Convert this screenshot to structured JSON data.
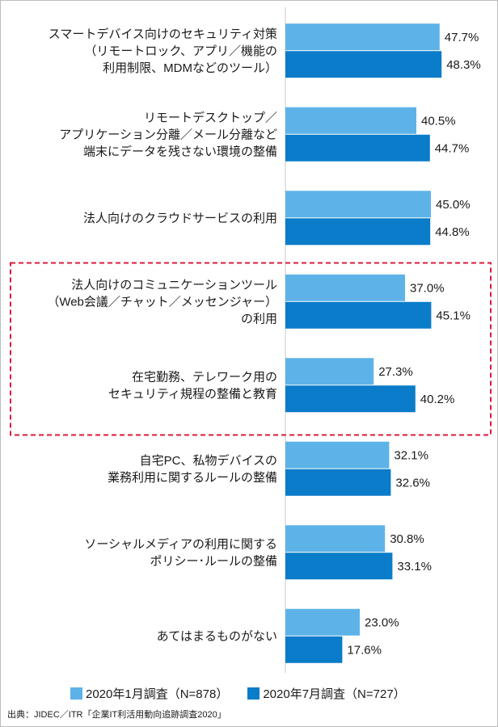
{
  "colors": {
    "series1": "#5db3e8",
    "series2": "#0a7cc9",
    "highlight": "#d81b3c",
    "axis": "#c8c8c8"
  },
  "chart_data": {
    "type": "bar",
    "orientation": "horizontal",
    "categories": [
      [
        "スマートデバイス向けのセキュリティ対策",
        "（リモートロック、アプリ／機能の",
        "利用制限、MDMなどのツール）"
      ],
      [
        "リモートデスクトップ／",
        "アプリケーション分離／メール分離など",
        "端末にデータを残さない環境の整備"
      ],
      [
        "法人向けのクラウドサービスの利用"
      ],
      [
        "法人向けのコミュニケーションツール",
        "（Web会議／チャット／メッセンジャー）",
        "の利用"
      ],
      [
        "在宅勤務、テレワーク用の",
        "セキュリティ規程の整備と教育"
      ],
      [
        "自宅PC、私物デバイスの",
        "業務利用に関するルールの整備"
      ],
      [
        "ソーシャルメディアの利用に関する",
        "ポリシー･ルールの整備"
      ],
      [
        "あてはまるものがない"
      ]
    ],
    "series": [
      {
        "name": "2020年1月調査（N=878）",
        "values": [
          47.7,
          40.5,
          45.0,
          37.0,
          27.3,
          32.1,
          30.8,
          23.0
        ]
      },
      {
        "name": "2020年7月調査（N=727）",
        "values": [
          48.3,
          44.7,
          44.8,
          45.1,
          40.2,
          32.6,
          33.1,
          17.6
        ]
      }
    ],
    "value_labels": [
      [
        "47.7%",
        "40.5%",
        "45.0%",
        "37.0%",
        "27.3%",
        "32.1%",
        "30.8%",
        "23.0%"
      ],
      [
        "48.3%",
        "44.7%",
        "44.8%",
        "45.1%",
        "40.2%",
        "32.6%",
        "33.1%",
        "17.6%"
      ]
    ],
    "highlighted_categories": [
      3,
      4
    ],
    "xlim": [
      0,
      60
    ],
    "legend_position": "bottom",
    "grid": false
  },
  "source": "出典：JIDEC／ITR「企業IT利活用動向追跡調査2020」"
}
